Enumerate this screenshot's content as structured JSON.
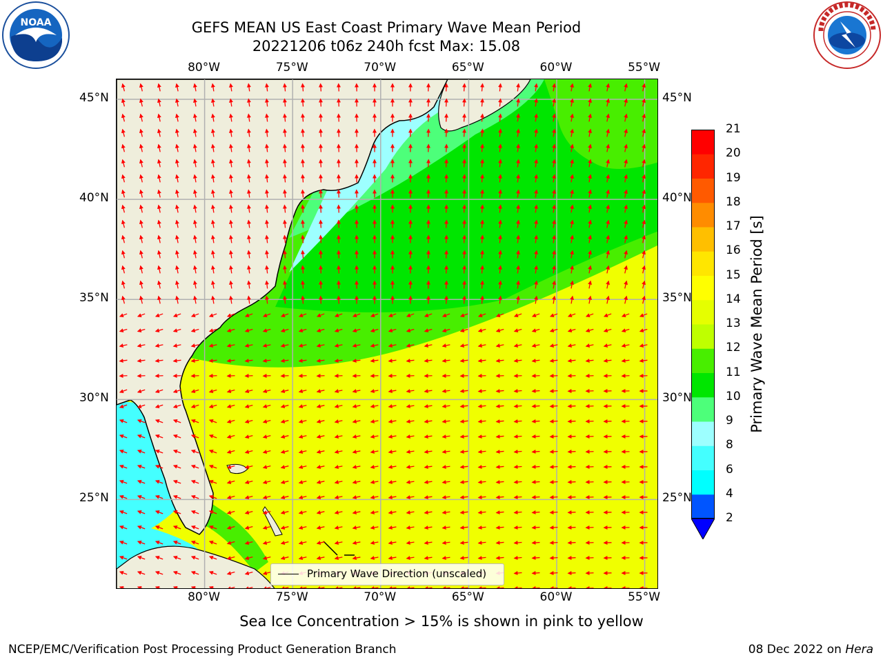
{
  "header": {
    "title_line1": "GEFS MEAN US East Coast Primary Wave Mean Period",
    "title_line2": "20221206 t06z 240h fcst   Max: 15.08"
  },
  "logos": {
    "left": {
      "icon": "noaa-logo",
      "text": "NOAA"
    },
    "right": {
      "icon": "nws-logo"
    }
  },
  "map": {
    "lon_range": [
      -85,
      -54.2
    ],
    "lat_range": [
      20.5,
      46
    ],
    "lon_ticks": [
      "80°W",
      "75°W",
      "70°W",
      "65°W",
      "60°W",
      "55°W"
    ],
    "lon_values": [
      -80,
      -75,
      -70,
      -65,
      -60,
      -55
    ],
    "lat_ticks": [
      "25°N",
      "30°N",
      "35°N",
      "40°N",
      "45°N"
    ],
    "lat_values": [
      25,
      30,
      35,
      40,
      45
    ],
    "grid": true,
    "land_color": "#efeedc",
    "arrow_color": "#ff0000"
  },
  "colorbar": {
    "title": "Primary Wave Mean Period [s]",
    "labels": [
      "2",
      "4",
      "6",
      "8",
      "9",
      "10",
      "11",
      "12",
      "13",
      "14",
      "15",
      "16",
      "17",
      "18",
      "19",
      "20",
      "21"
    ],
    "colors": [
      "#0055ff",
      "#00ffff",
      "#44ffff",
      "#9dffff",
      "#4dff7a",
      "#00e600",
      "#48ee00",
      "#bfff00",
      "#e5ff00",
      "#ffff00",
      "#ffe600",
      "#ffbf00",
      "#ff8c00",
      "#ff5a00",
      "#ff2600",
      "#ff0000"
    ],
    "extend_color": "#0000ff"
  },
  "legend": {
    "label": "Primary Wave Direction (unscaled)"
  },
  "note": "Sea Ice Concentration > 15% is shown in pink to yellow",
  "footer": {
    "left": "NCEP/EMC/Verification Post Processing Product Generation Branch",
    "right_date": "08 Dec 2022 on ",
    "right_machine": "Hera"
  }
}
